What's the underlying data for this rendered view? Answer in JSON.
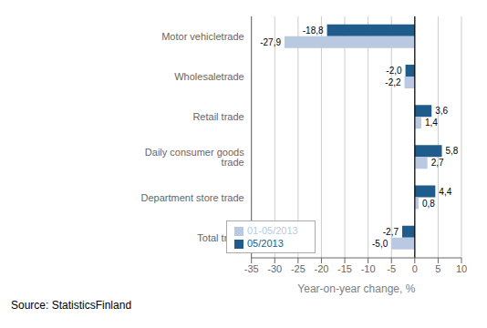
{
  "chart_data": {
    "type": "bar",
    "orientation": "horizontal",
    "categories": [
      "Motor vehicletrade",
      "Wholesaletrade",
      "Retail trade",
      "Daily consumer goods trade",
      "Department store trade",
      "Total trade"
    ],
    "series": [
      {
        "name": "05/2013",
        "color": "#1f5c8b",
        "values": [
          -18.8,
          -2.0,
          3.6,
          5.8,
          4.4,
          -2.7
        ],
        "value_labels": [
          "-18,8",
          "-2,0",
          "3,6",
          "5,8",
          "4,4",
          "-2,7"
        ]
      },
      {
        "name": "01-05/2013",
        "color": "#b8c9e1",
        "values": [
          -27.9,
          -2.2,
          1.4,
          2.7,
          0.8,
          -5.0
        ],
        "value_labels": [
          "-27,9",
          "-2,2",
          "1,4",
          "2,7",
          "0,8",
          "-5,0"
        ]
      }
    ],
    "xlabel": "Year-on-year change, %",
    "xlim": [
      -35,
      10
    ],
    "xticks": [
      -35,
      -30,
      -25,
      -20,
      -15,
      -10,
      -5,
      0,
      5,
      10
    ],
    "grid": true,
    "legend": "lower left",
    "data_labels": true,
    "annotations": [
      "Source: StatisticsFinland"
    ]
  }
}
